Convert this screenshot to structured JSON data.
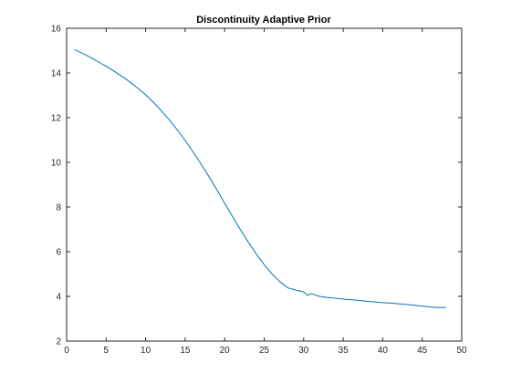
{
  "chart_data": {
    "type": "line",
    "title": "Discontinuity Adaptive Prior",
    "xlabel": "",
    "ylabel": "",
    "xlim": [
      0,
      50
    ],
    "ylim": [
      2,
      16
    ],
    "xticks": [
      0,
      5,
      10,
      15,
      20,
      25,
      30,
      35,
      40,
      45,
      50
    ],
    "yticks": [
      2,
      4,
      6,
      8,
      10,
      12,
      14,
      16
    ],
    "grid": false,
    "legend": "none",
    "colors": {
      "line": "#0072bd",
      "axes": "#262626",
      "background": "#ffffff"
    },
    "series": [
      {
        "x": [
          1,
          2,
          3,
          4,
          5,
          6,
          7,
          8,
          9,
          10,
          11,
          12,
          13,
          14,
          15,
          16,
          17,
          18,
          19,
          20,
          21,
          22,
          23,
          24,
          25,
          26,
          27,
          28,
          29,
          30,
          30.5,
          31,
          32,
          33,
          34,
          35,
          36,
          37,
          38,
          39,
          40,
          41,
          42,
          43,
          44,
          45,
          46,
          47,
          48
        ],
        "y": [
          15.05,
          14.88,
          14.7,
          14.5,
          14.3,
          14.08,
          13.85,
          13.6,
          13.32,
          13.02,
          12.68,
          12.3,
          11.9,
          11.45,
          10.98,
          10.47,
          9.93,
          9.37,
          8.78,
          8.17,
          7.57,
          6.98,
          6.42,
          5.9,
          5.42,
          5.0,
          4.65,
          4.38,
          4.28,
          4.2,
          4.05,
          4.12,
          4.0,
          3.95,
          3.92,
          3.88,
          3.85,
          3.82,
          3.78,
          3.75,
          3.72,
          3.7,
          3.67,
          3.64,
          3.6,
          3.56,
          3.53,
          3.5,
          3.5
        ]
      }
    ]
  }
}
